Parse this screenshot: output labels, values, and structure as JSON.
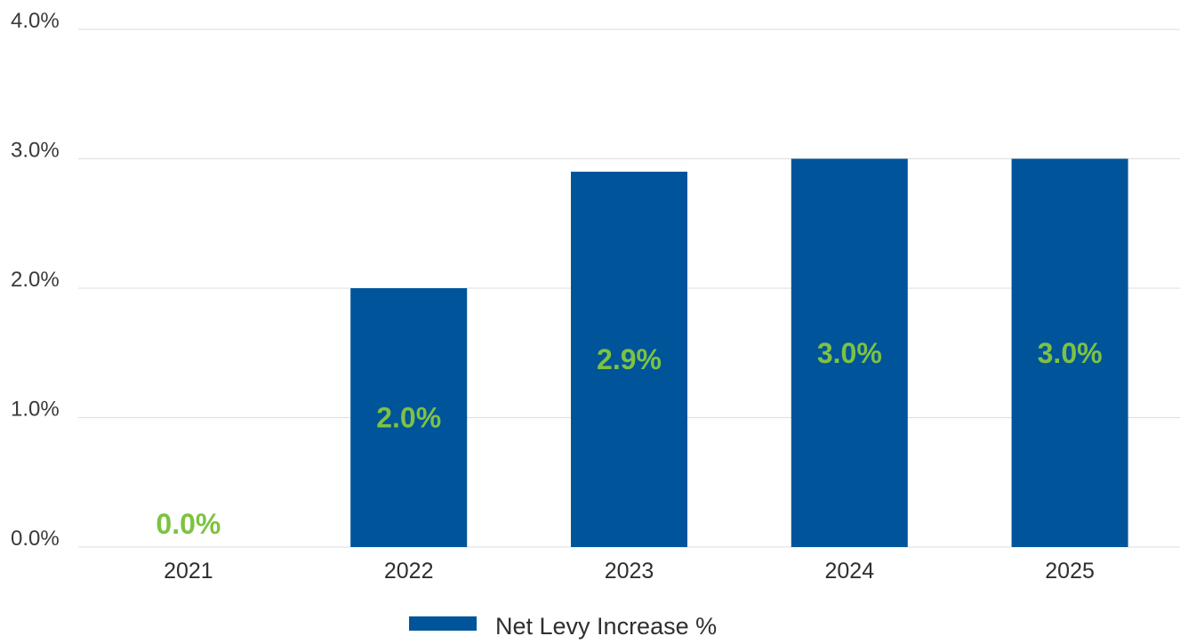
{
  "chart_data": {
    "type": "bar",
    "categories": [
      "2021",
      "2022",
      "2023",
      "2024",
      "2025"
    ],
    "series": [
      {
        "name": "Net Levy Increase %",
        "values": [
          0.0,
          2.0,
          2.9,
          3.0,
          3.0
        ],
        "data_labels": [
          "0.0%",
          "2.0%",
          "2.9%",
          "3.0%",
          "3.0%"
        ],
        "color": "#00549a",
        "label_color": "#7dc242"
      }
    ],
    "y_ticks": [
      {
        "value": 0.0,
        "label": "0.0%"
      },
      {
        "value": 1.0,
        "label": "1.0%"
      },
      {
        "value": 2.0,
        "label": "2.0%"
      },
      {
        "value": 3.0,
        "label": "3.0%"
      },
      {
        "value": 4.0,
        "label": "4.0%"
      }
    ],
    "ylim": [
      0,
      4
    ],
    "grid": true,
    "legend_position": "bottom-center",
    "title": "",
    "xlabel": "",
    "ylabel": ""
  }
}
